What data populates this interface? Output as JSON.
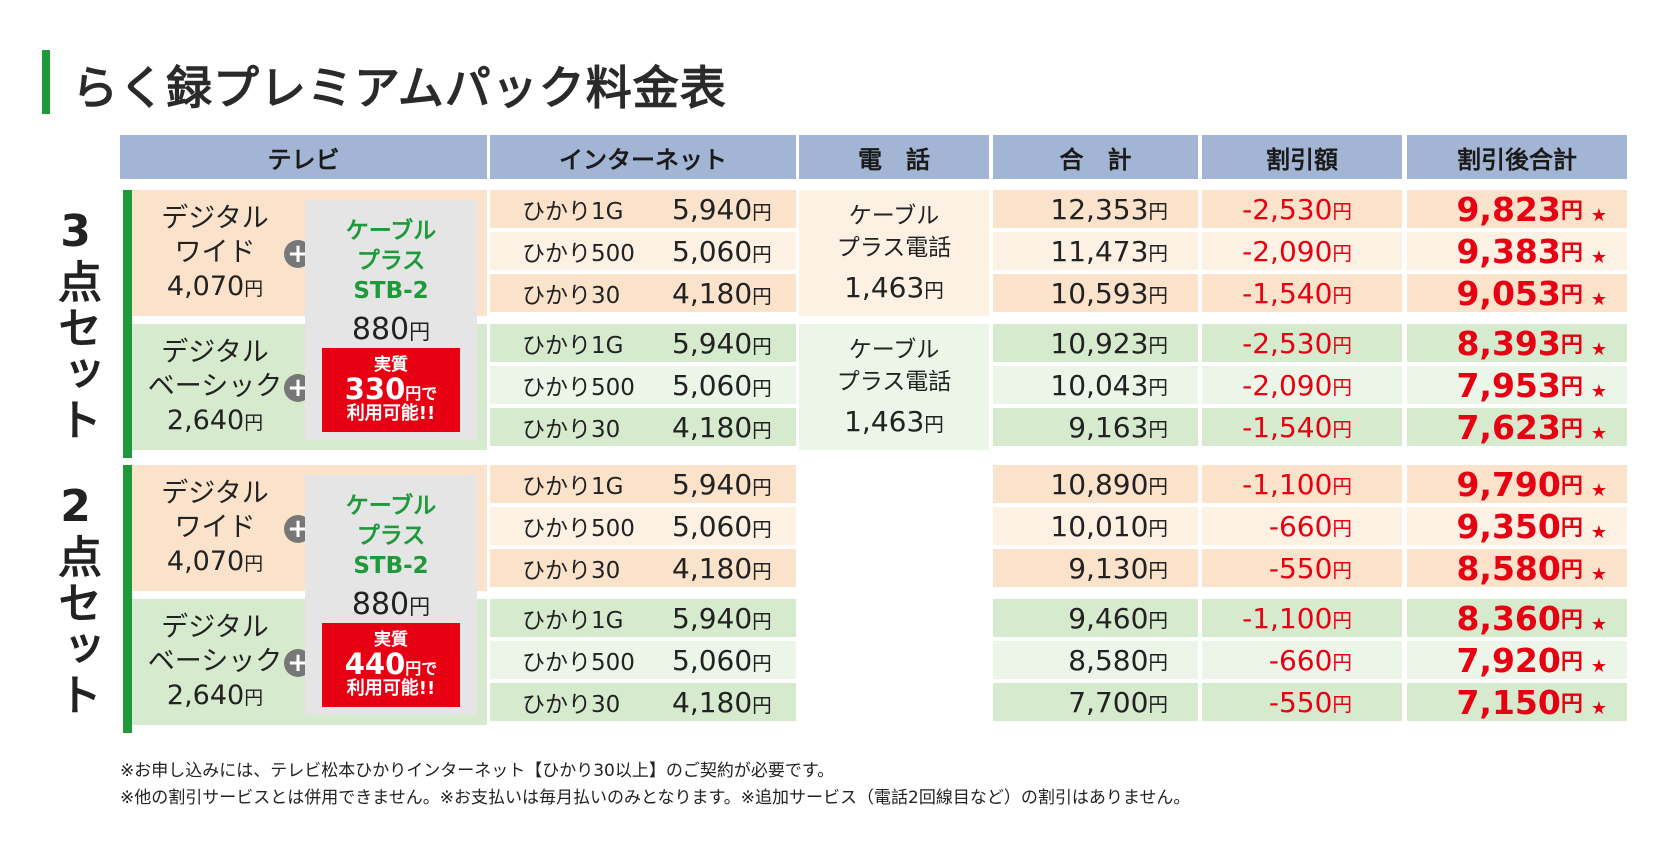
{
  "title": "らく録プレミアムパック料金表",
  "headers": [
    "テレビ",
    "インターネット",
    "電　話",
    "合　計",
    "割引額",
    "割引後合計"
  ],
  "yen": "円",
  "star": "★",
  "colors": {
    "green": "#1f9a3a",
    "header_blue": "#a3b5d4",
    "orange_dark": "#fbe3cb",
    "orange_light": "#fdf1e4",
    "green_dark": "#d6ebcd",
    "green_light": "#ecf6e8",
    "red": "#e60012"
  },
  "groups": [
    {
      "label": "3点セット",
      "stb": {
        "name": "ケーブル\nプラス\nSTB-2",
        "price": "880",
        "promo_l1": "実質",
        "promo_amount": "330",
        "promo_yen_de": "円で",
        "promo_l3": "利用可能!!"
      },
      "phone": {
        "name_l1": "ケーブル",
        "name_l2": "プラス電話",
        "price": "1,463"
      },
      "sub": [
        {
          "tv_name_l1": "デジタル",
          "tv_name_l2": "ワイド",
          "tv_price": "4,070",
          "rows": [
            {
              "net": "ひかり1G",
              "net_price": "5,940",
              "total": "12,353",
              "discount": "-2,530",
              "final": "9,823"
            },
            {
              "net": "ひかり500",
              "net_price": "5,060",
              "total": "11,473",
              "discount": "-2,090",
              "final": "9,383"
            },
            {
              "net": "ひかり30",
              "net_price": "4,180",
              "total": "10,593",
              "discount": "-1,540",
              "final": "9,053"
            }
          ]
        },
        {
          "tv_name_l1": "デジタル",
          "tv_name_l2": "ベーシック",
          "tv_price": "2,640",
          "rows": [
            {
              "net": "ひかり1G",
              "net_price": "5,940",
              "total": "10,923",
              "discount": "-2,530",
              "final": "8,393"
            },
            {
              "net": "ひかり500",
              "net_price": "5,060",
              "total": "10,043",
              "discount": "-2,090",
              "final": "7,953"
            },
            {
              "net": "ひかり30",
              "net_price": "4,180",
              "total": "9,163",
              "discount": "-1,540",
              "final": "7,623"
            }
          ]
        }
      ]
    },
    {
      "label": "2点セット",
      "stb": {
        "name": "ケーブル\nプラス\nSTB-2",
        "price": "880",
        "promo_l1": "実質",
        "promo_amount": "440",
        "promo_yen_de": "円で",
        "promo_l3": "利用可能!!"
      },
      "phone": null,
      "sub": [
        {
          "tv_name_l1": "デジタル",
          "tv_name_l2": "ワイド",
          "tv_price": "4,070",
          "rows": [
            {
              "net": "ひかり1G",
              "net_price": "5,940",
              "total": "10,890",
              "discount": "-1,100",
              "final": "9,790"
            },
            {
              "net": "ひかり500",
              "net_price": "5,060",
              "total": "10,010",
              "discount": "-660",
              "final": "9,350"
            },
            {
              "net": "ひかり30",
              "net_price": "4,180",
              "total": "9,130",
              "discount": "-550",
              "final": "8,580"
            }
          ]
        },
        {
          "tv_name_l1": "デジタル",
          "tv_name_l2": "ベーシック",
          "tv_price": "2,640",
          "rows": [
            {
              "net": "ひかり1G",
              "net_price": "5,940",
              "total": "9,460",
              "discount": "-1,100",
              "final": "8,360"
            },
            {
              "net": "ひかり500",
              "net_price": "5,060",
              "total": "8,580",
              "discount": "-660",
              "final": "7,920"
            },
            {
              "net": "ひかり30",
              "net_price": "4,180",
              "total": "7,700",
              "discount": "-550",
              "final": "7,150"
            }
          ]
        }
      ]
    }
  ],
  "notes": [
    "※お申し込みには、テレビ松本ひかりインターネット【ひかり30以上】のご契約が必要です。",
    "※他の割引サービスとは併用できません。※お支払いは毎月払いのみとなります。※追加サービス（電話2回線目など）の割引はありません。"
  ]
}
